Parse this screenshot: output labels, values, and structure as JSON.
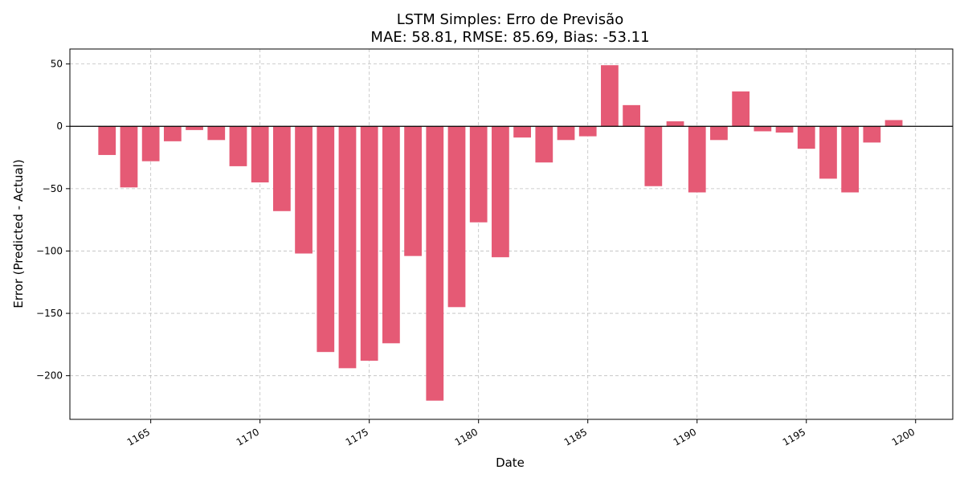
{
  "chart_data": {
    "type": "bar",
    "title": "LSTM Simples: Erro de Previsão",
    "subtitle": "MAE: 58.81, RMSE: 85.69, Bias: -53.11",
    "xlabel": "Date",
    "ylabel": "Error (Predicted - Actual)",
    "xlim": [
      1161.3,
      1201.7
    ],
    "ylim": [
      -235,
      62
    ],
    "x_ticks": [
      1165,
      1170,
      1175,
      1180,
      1185,
      1190,
      1195,
      1200
    ],
    "y_ticks": [
      50,
      0,
      -50,
      -100,
      -150,
      -200
    ],
    "x_tick_labels": [
      "1165",
      "1170",
      "1175",
      "1180",
      "1185",
      "1190",
      "1195",
      "1200"
    ],
    "y_tick_labels": [
      "50",
      "0",
      "−50",
      "−100",
      "−150",
      "−200"
    ],
    "grid": true,
    "bar_color": "#e55a75",
    "baseline": 0,
    "x": [
      1163,
      1164,
      1165,
      1166,
      1167,
      1168,
      1169,
      1170,
      1171,
      1172,
      1173,
      1174,
      1175,
      1176,
      1177,
      1178,
      1179,
      1180,
      1181,
      1182,
      1183,
      1184,
      1185,
      1186,
      1187,
      1188,
      1189,
      1190,
      1191,
      1192,
      1193,
      1194,
      1195,
      1196,
      1197,
      1198,
      1199
    ],
    "values": [
      -23,
      -49,
      -28,
      -12,
      -3,
      -11,
      -32,
      -45,
      -68,
      -102,
      -181,
      -194,
      -188,
      -174,
      -104,
      -220,
      -145,
      -77,
      -105,
      -9,
      -29,
      -11,
      -8,
      49,
      17,
      -48,
      4,
      -53,
      -11,
      28,
      -4,
      -5,
      -18,
      -42,
      -53,
      -13,
      5
    ]
  }
}
